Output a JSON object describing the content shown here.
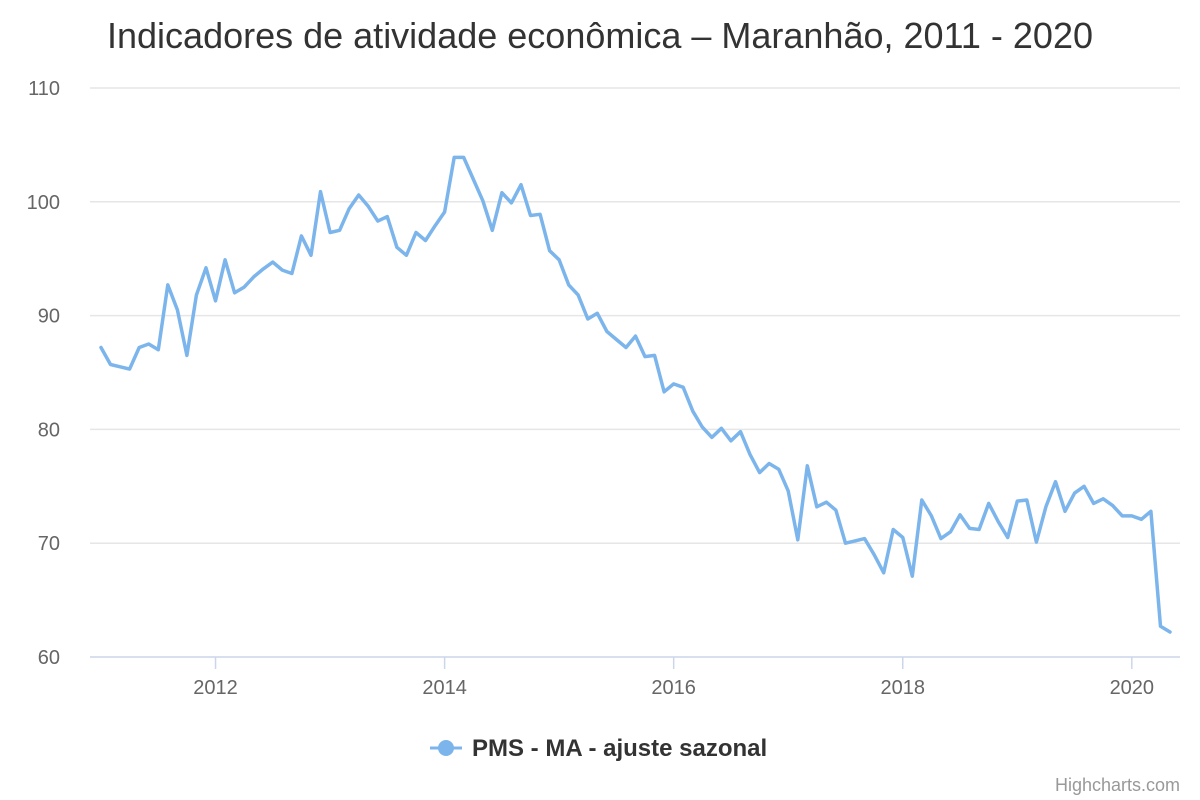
{
  "chart_data": {
    "type": "line",
    "title": "Indicadores de atividade econômica – Maranhão, 2011 - 2020",
    "xlabel": "",
    "ylabel": "",
    "ylim": [
      60,
      110
    ],
    "y_ticks": [
      "60",
      "70",
      "80",
      "90",
      "100",
      "110"
    ],
    "x_ticks": [
      "2012",
      "2014",
      "2016",
      "2018",
      "2020"
    ],
    "grid": true,
    "legend": "bottom-center",
    "x_start": "2011-01",
    "x_end": "2020-05",
    "series": [
      {
        "name": "PMS - MA - ajuste sazonal",
        "color": "#7cb5ec",
        "values": [
          87.2,
          85.7,
          85.5,
          85.3,
          87.2,
          87.5,
          87.0,
          92.7,
          90.5,
          86.5,
          91.8,
          94.2,
          91.3,
          94.9,
          92.0,
          92.5,
          93.4,
          94.1,
          94.7,
          94.0,
          93.7,
          97.0,
          95.3,
          100.9,
          97.3,
          97.5,
          99.4,
          100.6,
          99.6,
          98.3,
          98.7,
          96.0,
          95.3,
          97.3,
          96.6,
          97.9,
          99.1,
          103.9,
          103.9,
          102.0,
          100.1,
          97.5,
          100.8,
          99.9,
          101.5,
          98.8,
          98.9,
          95.7,
          94.9,
          92.7,
          91.8,
          89.7,
          90.2,
          88.6,
          87.9,
          87.2,
          88.2,
          86.4,
          86.5,
          83.3,
          84.0,
          83.7,
          81.6,
          80.2,
          79.3,
          80.1,
          79.0,
          79.8,
          77.8,
          76.2,
          77.0,
          76.5,
          74.6,
          70.3,
          76.8,
          73.2,
          73.6,
          72.9,
          70.0,
          70.2,
          70.4,
          69.0,
          67.4,
          71.2,
          70.5,
          67.1,
          73.8,
          72.4,
          70.4,
          71.0,
          72.5,
          71.3,
          71.2,
          73.5,
          71.9,
          70.5,
          73.7,
          73.8,
          70.1,
          73.2,
          75.4,
          72.8,
          74.4,
          75.0,
          73.5,
          73.9,
          73.3,
          72.4,
          72.4,
          72.1,
          72.8,
          62.7,
          62.2
        ]
      }
    ]
  },
  "credits": "Highcharts.com"
}
